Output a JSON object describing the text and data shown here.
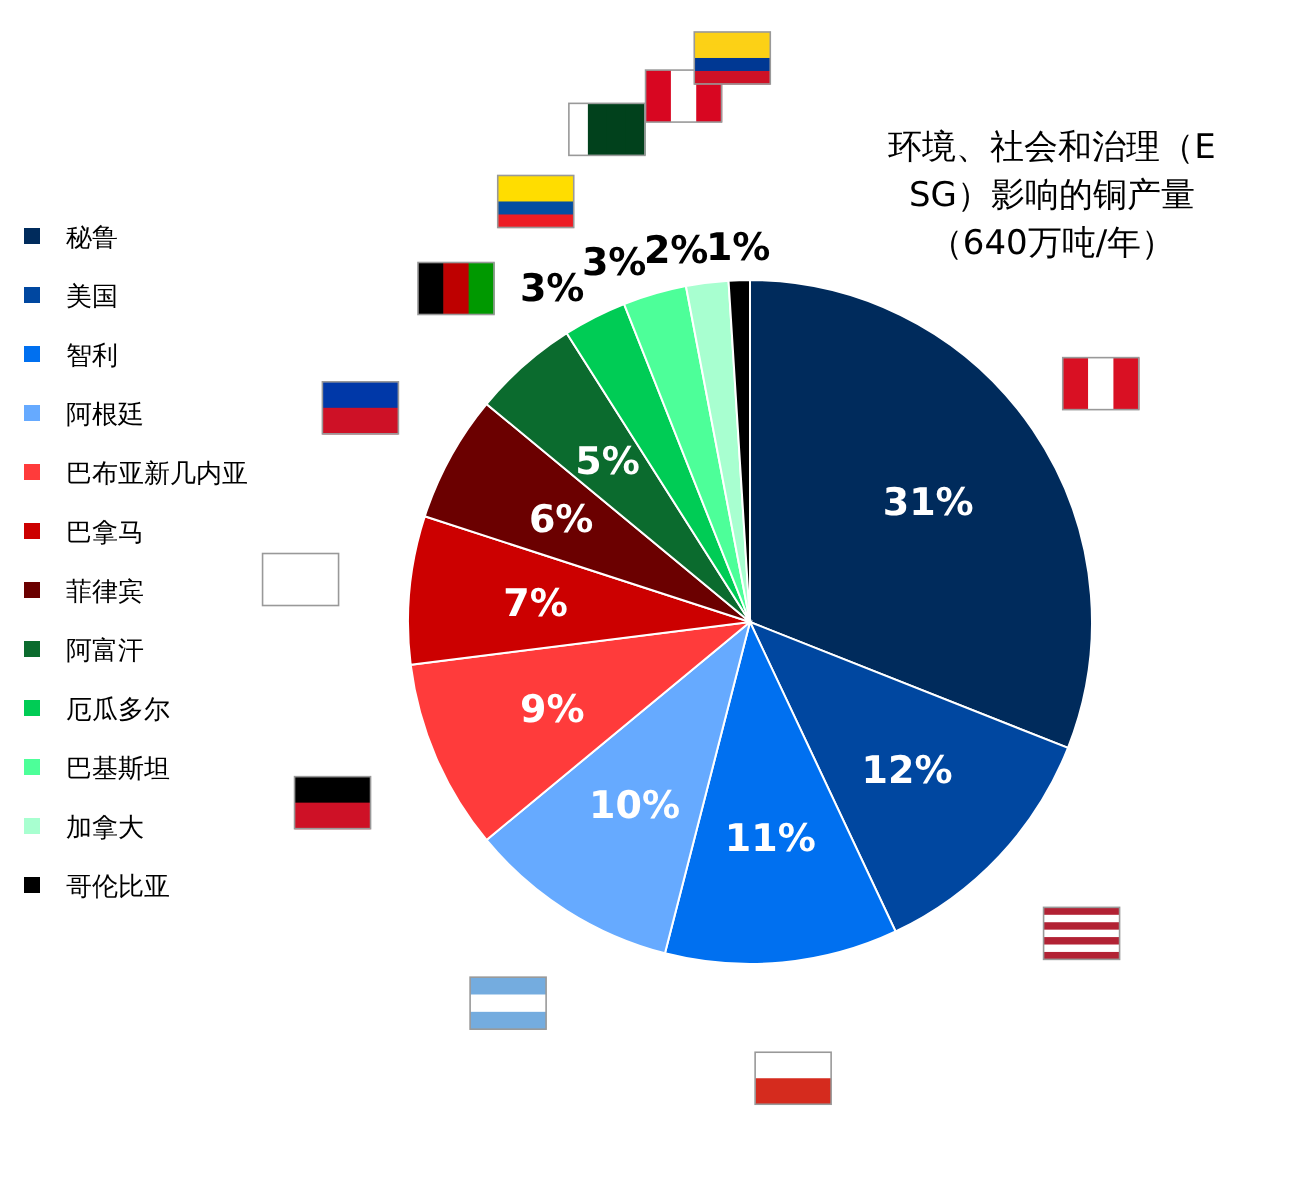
{
  "chart_data": {
    "type": "pie",
    "title": "环境、社会和治理（ESG）影响的铜产量",
    "subtitle": "（640万吨/年）",
    "categories": [
      "秘鲁",
      "美国",
      "智利",
      "阿根廷",
      "巴布亚新几内亚",
      "巴拿马",
      "菲律宾",
      "阿富汗",
      "厄瓜多尔",
      "巴基斯坦",
      "加拿大",
      "哥伦比亚"
    ],
    "values": [
      31,
      12,
      11,
      10,
      9,
      7,
      6,
      5,
      3,
      3,
      2,
      1
    ],
    "colors": [
      "#002b5c",
      "#0047a0",
      "#0070f0",
      "#66aaff",
      "#ff3b3b",
      "#cc0000",
      "#6b0000",
      "#0b6b2e",
      "#00cc55",
      "#4dff99",
      "#a8ffd0",
      "#000000"
    ],
    "value_labels": [
      "31%",
      "12%",
      "11%",
      "10%",
      "9%",
      "7%",
      "6%",
      "5%",
      "3%",
      "3%",
      "2%",
      "1%"
    ],
    "legend": "left"
  }
}
